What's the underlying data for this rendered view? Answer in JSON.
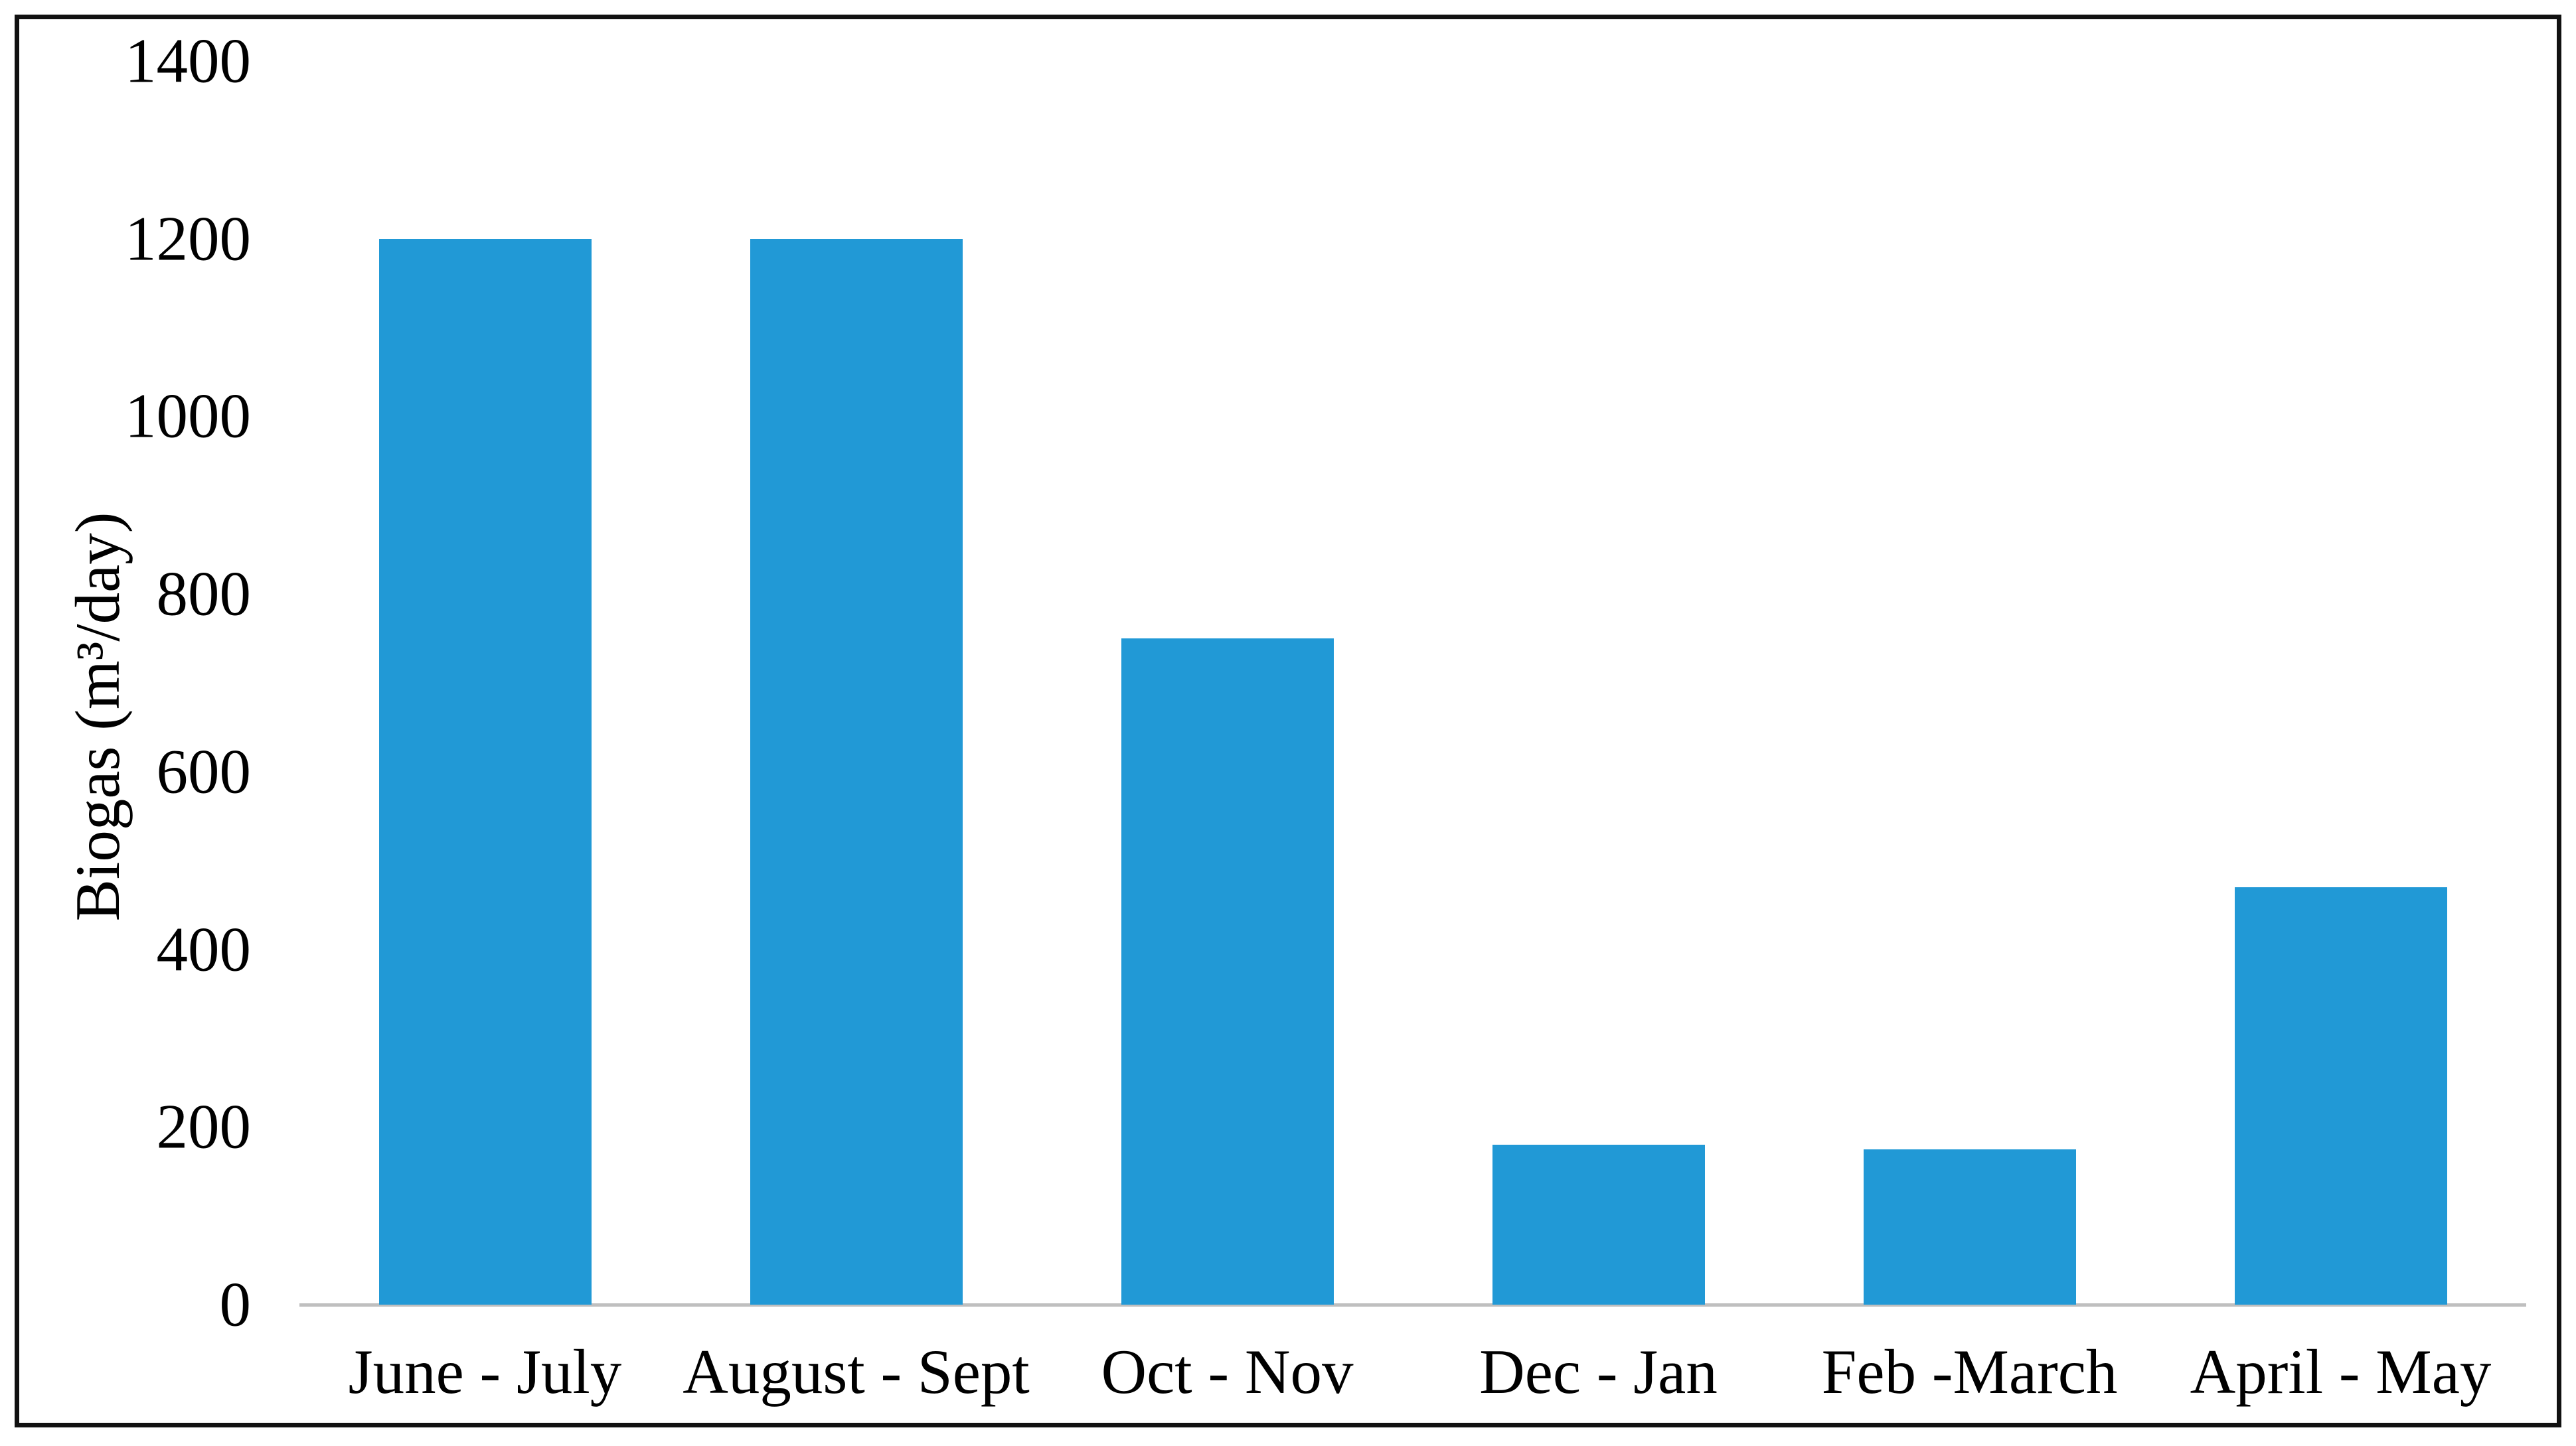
{
  "chart_data": {
    "type": "bar",
    "categories": [
      "June - July",
      "August - Sept",
      "Oct - Nov",
      "Dec - Jan",
      "Feb -March",
      "April - May"
    ],
    "values": [
      1200,
      1200,
      750,
      180,
      175,
      470
    ],
    "title": "",
    "xlabel": "",
    "ylabel": "Biogas (m³/day)",
    "ylim": [
      0,
      1400
    ],
    "yticks": [
      0,
      200,
      400,
      600,
      800,
      1000,
      1200,
      1400
    ],
    "grid": false,
    "legend": "none",
    "bar_color": "#2199d6",
    "axis_line_color": "#bfbfbf",
    "text_color": "#000000",
    "frame_color": "#111111",
    "background": "#ffffff"
  }
}
